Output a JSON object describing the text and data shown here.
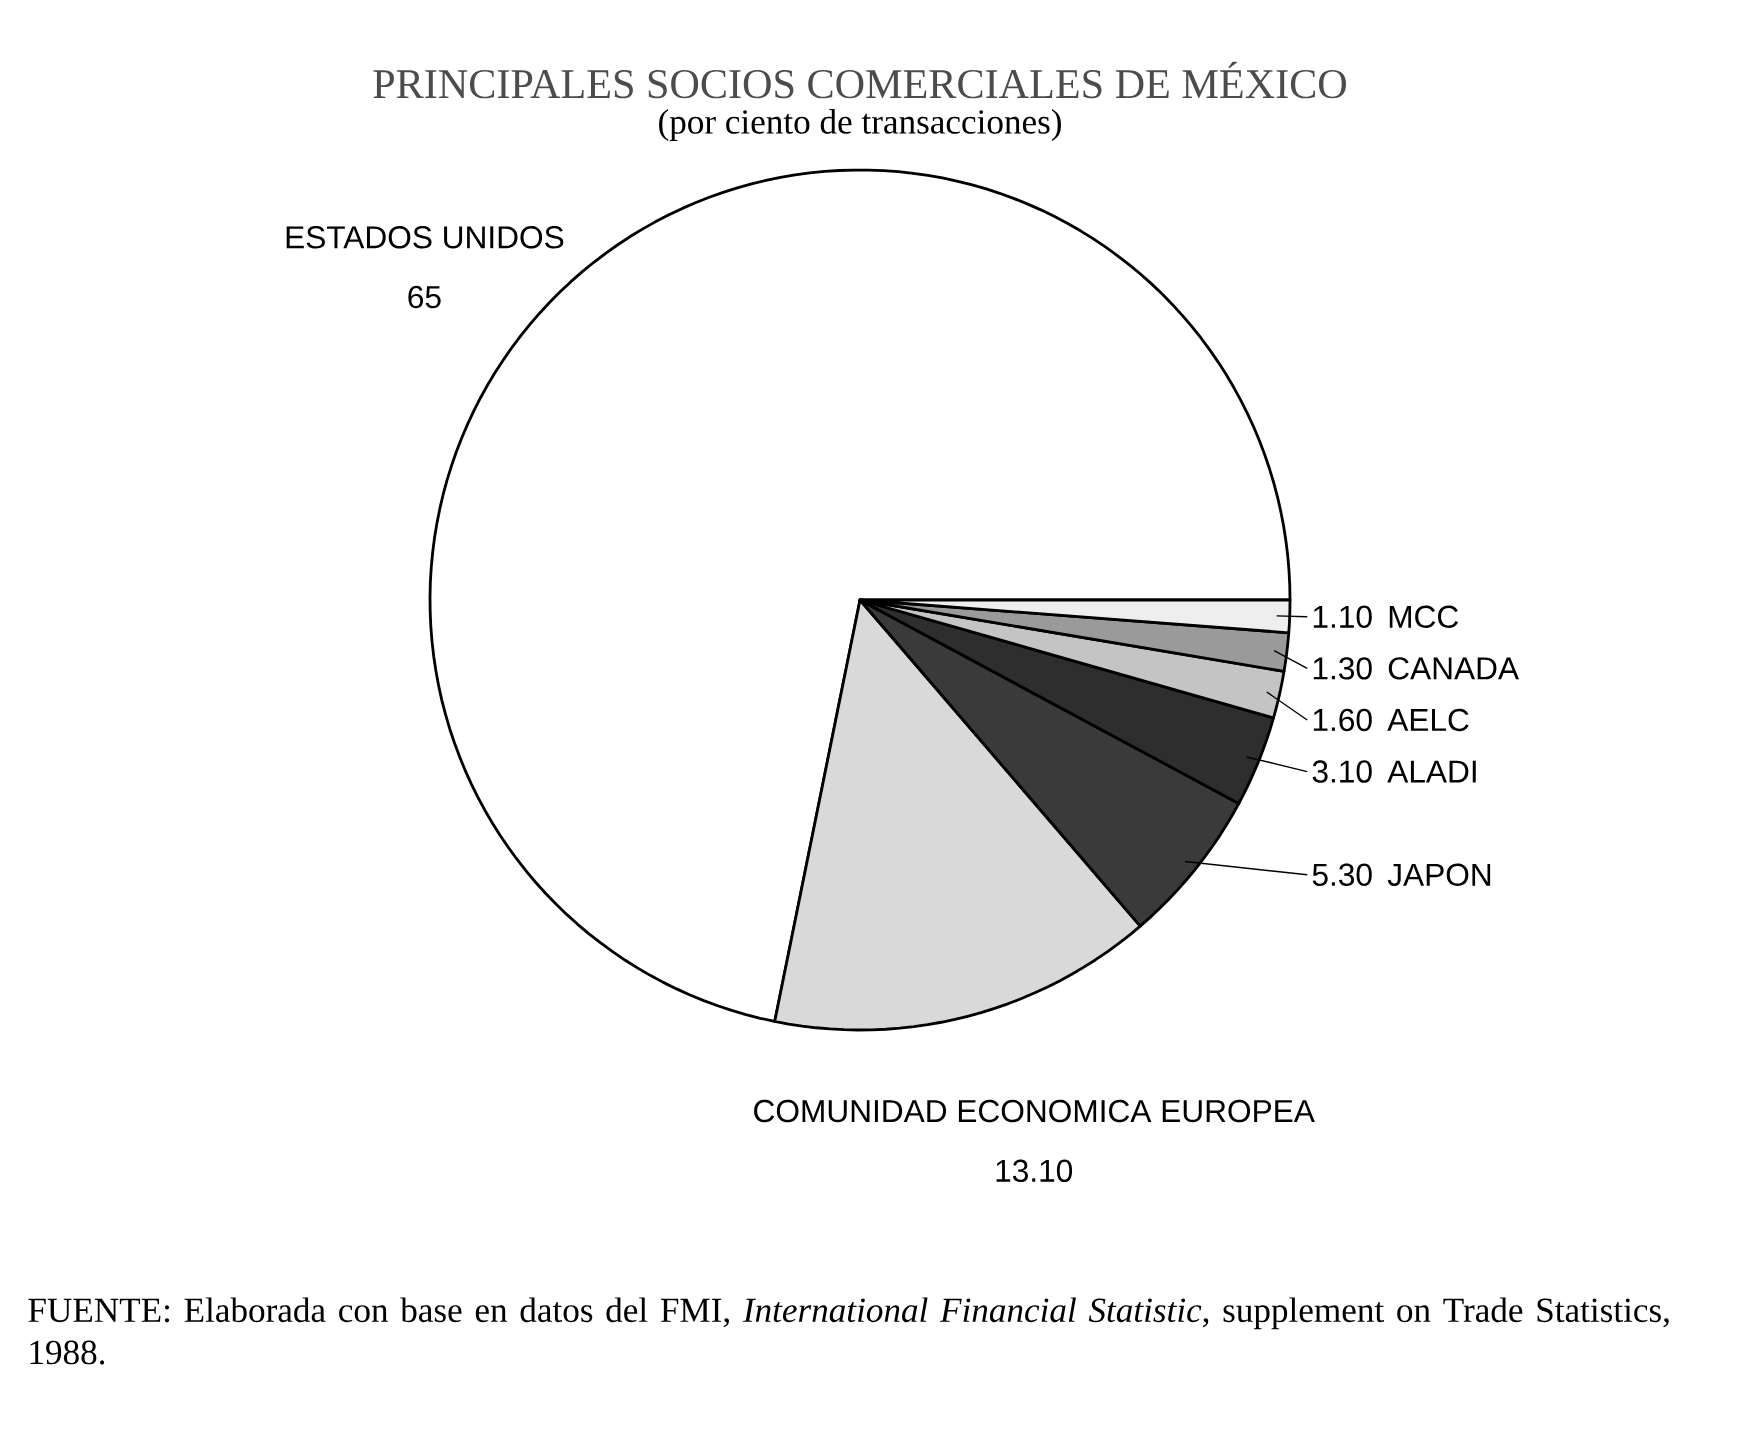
{
  "chart_data": {
    "type": "pie",
    "title": "PRINCIPALES SOCIOS COMERCIALES DE MÉXICO",
    "subtitle": "(por ciento de transacciones)",
    "categories": [
      "ESTADOS UNIDOS",
      "COMUNIDAD ECONOMICA EUROPEA",
      "JAPON",
      "ALADI",
      "AELC",
      "CANADA",
      "MCC"
    ],
    "values": [
      65,
      13.1,
      5.3,
      3.1,
      1.6,
      1.3,
      1.1
    ],
    "value_labels": [
      "65",
      "13.10",
      "5.30",
      "3.10",
      "1.60",
      "1.30",
      "1.10"
    ],
    "colors": [
      "#ffffff",
      "#d9d9d9",
      "#3a3a3a",
      "#2e2e2e",
      "#c4c4c4",
      "#9a9a9a",
      "#eeeeee"
    ],
    "annotations": [
      "FUENTE: Elaborada con base en datos del FMI, *International Financial Statistic*, supplement on Trade Statistics, 1988."
    ]
  }
}
